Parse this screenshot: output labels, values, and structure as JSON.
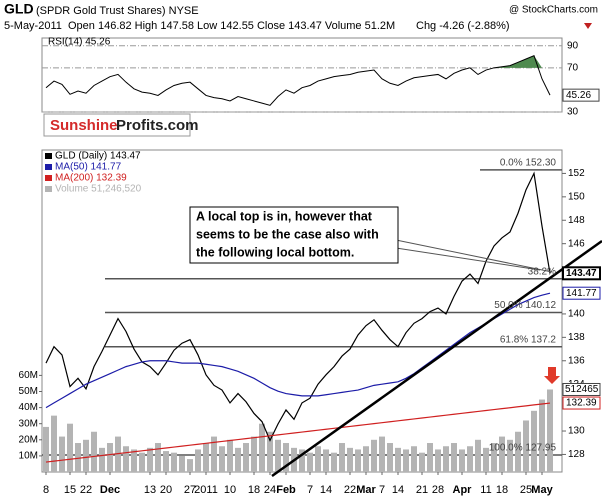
{
  "header": {
    "symbol": "GLD",
    "name": "(SPDR Gold Trust Shares) NYSE",
    "source": "@ StockCharts.com",
    "date": "5-May-2011",
    "quote": "Open 146.82 High 147.58 Low 142.55 Close 143.47 Volume 51.2M",
    "change": "Chg -4.26 (-2.88%)"
  },
  "logo": {
    "part1": "Sunshine",
    "part2": "Profits.com"
  },
  "annotation": {
    "lines": [
      "A local top is in, however that",
      "seems to be the case also with",
      "the following local bottom."
    ]
  },
  "chart_data": [
    {
      "type": "line",
      "ylim": [
        30,
        97
      ],
      "yticks": [
        90,
        70,
        30
      ],
      "overbought": 70,
      "overbought_color": "#4e8a4e",
      "series": [
        {
          "name": "RSI(14) 45.26",
          "color": "#000000",
          "values": [
            52,
            58,
            55,
            46,
            49,
            47,
            54,
            58,
            62,
            64,
            57,
            51,
            48,
            47,
            45,
            50,
            54,
            56,
            57,
            51,
            45,
            43,
            42,
            40,
            44,
            42,
            40,
            38,
            36,
            44,
            50,
            47,
            52,
            54,
            58,
            60,
            62,
            63,
            64,
            66,
            67,
            68,
            60,
            56,
            54,
            58,
            61,
            62,
            63,
            64,
            60,
            65,
            68,
            70,
            64,
            68,
            70,
            71,
            72,
            75,
            78,
            81,
            60,
            45.26
          ]
        }
      ]
    },
    {
      "type": "line",
      "categories": [
        "8",
        null,
        null,
        "15",
        null,
        "22",
        null,
        null,
        "Dec",
        null,
        null,
        null,
        null,
        "13",
        null,
        "20",
        null,
        null,
        "27",
        null,
        "2011",
        null,
        null,
        "10",
        null,
        null,
        "18",
        null,
        "24",
        null,
        "Feb",
        null,
        null,
        "7",
        null,
        "14",
        null,
        null,
        "22",
        null,
        "Mar",
        null,
        "7",
        null,
        "14",
        null,
        null,
        "21",
        null,
        "28",
        null,
        null,
        "Apr",
        null,
        null,
        "11",
        null,
        "18",
        null,
        null,
        "25",
        null,
        "May",
        null
      ],
      "ylim": [
        126.5,
        154
      ],
      "yticks": [
        128,
        130,
        134,
        136,
        138,
        140,
        146,
        148,
        150,
        152
      ],
      "y2lim": [
        0,
        200
      ],
      "y2ticks": [
        {
          "value": 60,
          "label": "60M"
        },
        {
          "value": 50,
          "label": "50M"
        },
        {
          "value": 40,
          "label": "40M"
        },
        {
          "value": 30,
          "label": "30M"
        },
        {
          "value": 20,
          "label": "20M"
        },
        {
          "value": 10,
          "label": "10M"
        }
      ],
      "volume_box_label": "512465",
      "fibonacci": [
        {
          "label": "0.0% 152.30",
          "value": 152.3
        },
        {
          "label": "38.2%",
          "value": 143.0
        },
        {
          "label": "50.0% 140.12",
          "value": 140.12
        },
        {
          "label": "61.8% 137.2",
          "value": 137.2
        },
        {
          "label": "100.0% 127.95",
          "value": 127.95
        }
      ],
      "series": [
        {
          "name": "GLD (Daily) 143.47",
          "color": "#000000",
          "values": [
            135.8,
            137.2,
            136.5,
            133.8,
            134.5,
            133.6,
            135.5,
            136.8,
            138.2,
            139.6,
            138.5,
            137.0,
            135.9,
            135.5,
            134.8,
            135.8,
            136.9,
            137.5,
            137.8,
            136.5,
            134.8,
            133.9,
            133.5,
            132.4,
            133.2,
            132.5,
            131.5,
            130.8,
            129.2,
            130.6,
            131.8,
            131.0,
            132.4,
            132.8,
            134.0,
            134.8,
            135.5,
            136.4,
            137.0,
            138.2,
            139.0,
            139.5,
            138.6,
            137.8,
            137.2,
            138.4,
            139.2,
            139.6,
            140.2,
            140.5,
            140.0,
            141.5,
            142.8,
            143.4,
            142.6,
            144.5,
            145.8,
            146.5,
            147.0,
            148.6,
            150.6,
            152.0,
            147.5,
            143.47
          ]
        },
        {
          "name": "MA(50) 141.77",
          "color": "#1c1ca8",
          "values": [
            132.0,
            132.4,
            132.8,
            133.2,
            133.6,
            134.0,
            134.3,
            134.6,
            134.9,
            135.2,
            135.5,
            135.7,
            135.9,
            136.0,
            136.0,
            136.0,
            135.9,
            135.8,
            135.8,
            135.8,
            135.7,
            135.6,
            135.5,
            135.3,
            135.1,
            134.8,
            134.5,
            134.1,
            133.7,
            133.4,
            133.2,
            133.1,
            133.0,
            133.0,
            133.0,
            133.1,
            133.2,
            133.3,
            133.4,
            133.5,
            133.7,
            133.9,
            134.0,
            134.1,
            134.2,
            134.5,
            134.9,
            135.4,
            135.9,
            136.4,
            136.9,
            137.4,
            137.9,
            138.4,
            138.8,
            139.2,
            139.6,
            140.0,
            140.4,
            140.8,
            141.1,
            141.4,
            141.6,
            141.77
          ]
        },
        {
          "name": "MA(200) 132.39",
          "color": "#d02020",
          "values": [
            127.35,
            127.43,
            127.51,
            127.59,
            127.67,
            127.75,
            127.83,
            127.91,
            127.99,
            128.07,
            128.15,
            128.23,
            128.31,
            128.39,
            128.47,
            128.55,
            128.63,
            128.71,
            128.79,
            128.87,
            128.95,
            129.03,
            129.11,
            129.19,
            129.27,
            129.35,
            129.43,
            129.51,
            129.59,
            129.67,
            129.75,
            129.83,
            129.91,
            129.99,
            130.07,
            130.15,
            130.23,
            130.31,
            130.39,
            130.47,
            130.55,
            130.63,
            130.71,
            130.79,
            130.87,
            130.95,
            131.03,
            131.11,
            131.19,
            131.27,
            131.35,
            131.43,
            131.51,
            131.59,
            131.67,
            131.75,
            131.83,
            131.91,
            131.99,
            132.07,
            132.15,
            132.23,
            132.31,
            132.39
          ]
        },
        {
          "name": "Volume 51,246,520",
          "color": "#b4b4b4",
          "type": "bar",
          "axis": "y2",
          "values": [
            28,
            35,
            22,
            30,
            18,
            20,
            25,
            15,
            18,
            22,
            16,
            14,
            12,
            15,
            18,
            13,
            12,
            10,
            8,
            14,
            18,
            22,
            16,
            20,
            15,
            18,
            22,
            30,
            25,
            20,
            18,
            15,
            14,
            12,
            16,
            14,
            12,
            18,
            15,
            14,
            16,
            20,
            22,
            18,
            15,
            14,
            16,
            12,
            18,
            14,
            16,
            18,
            14,
            16,
            20,
            15,
            18,
            22,
            20,
            25,
            32,
            38,
            45,
            51.25
          ]
        }
      ]
    }
  ]
}
